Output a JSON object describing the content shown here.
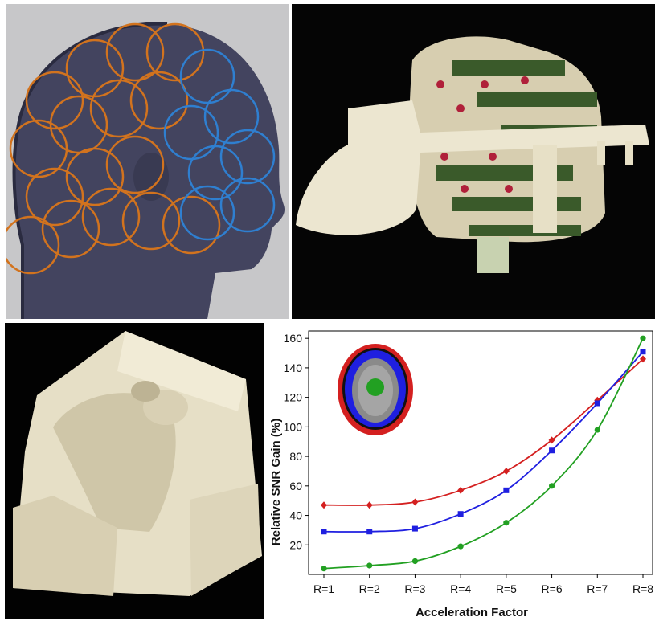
{
  "panels": [
    {
      "id": "a",
      "description_icon": "head-coil-array-model-icon"
    },
    {
      "id": "b",
      "description_icon": "coil-array-hardware-photo-icon"
    },
    {
      "id": "c",
      "description_icon": "coil-former-housing-photo-icon"
    }
  ],
  "colors": {
    "red": "#d42020",
    "blue": "#1f1fe0",
    "green": "#22a022",
    "orange_coil": "#d2731e",
    "blue_coil": "#2f7fd0"
  },
  "chart_data": {
    "type": "line",
    "xlabel": "Acceleration Factor",
    "ylabel": "Relative SNR Gain (%)",
    "categories": [
      "R=1",
      "R=2",
      "R=3",
      "R=4",
      "R=5",
      "R=6",
      "R=7",
      "R=8"
    ],
    "yticks": [
      "20",
      "40",
      "60",
      "80",
      "100",
      "120",
      "140",
      "160"
    ],
    "ylim": [
      0,
      165
    ],
    "grid": false,
    "series": [
      {
        "color": "#d42020",
        "marker": "diamond",
        "values": [
          47,
          47,
          49,
          57,
          70,
          91,
          118,
          146
        ]
      },
      {
        "color": "#1f1fe0",
        "marker": "square",
        "values": [
          29,
          29,
          31,
          41,
          57,
          84,
          116,
          151
        ]
      },
      {
        "color": "#22a022",
        "marker": "circle",
        "values": [
          4,
          6,
          9,
          19,
          35,
          60,
          98,
          160
        ]
      }
    ],
    "inset_icon": "head-slice-roi-map-icon"
  }
}
